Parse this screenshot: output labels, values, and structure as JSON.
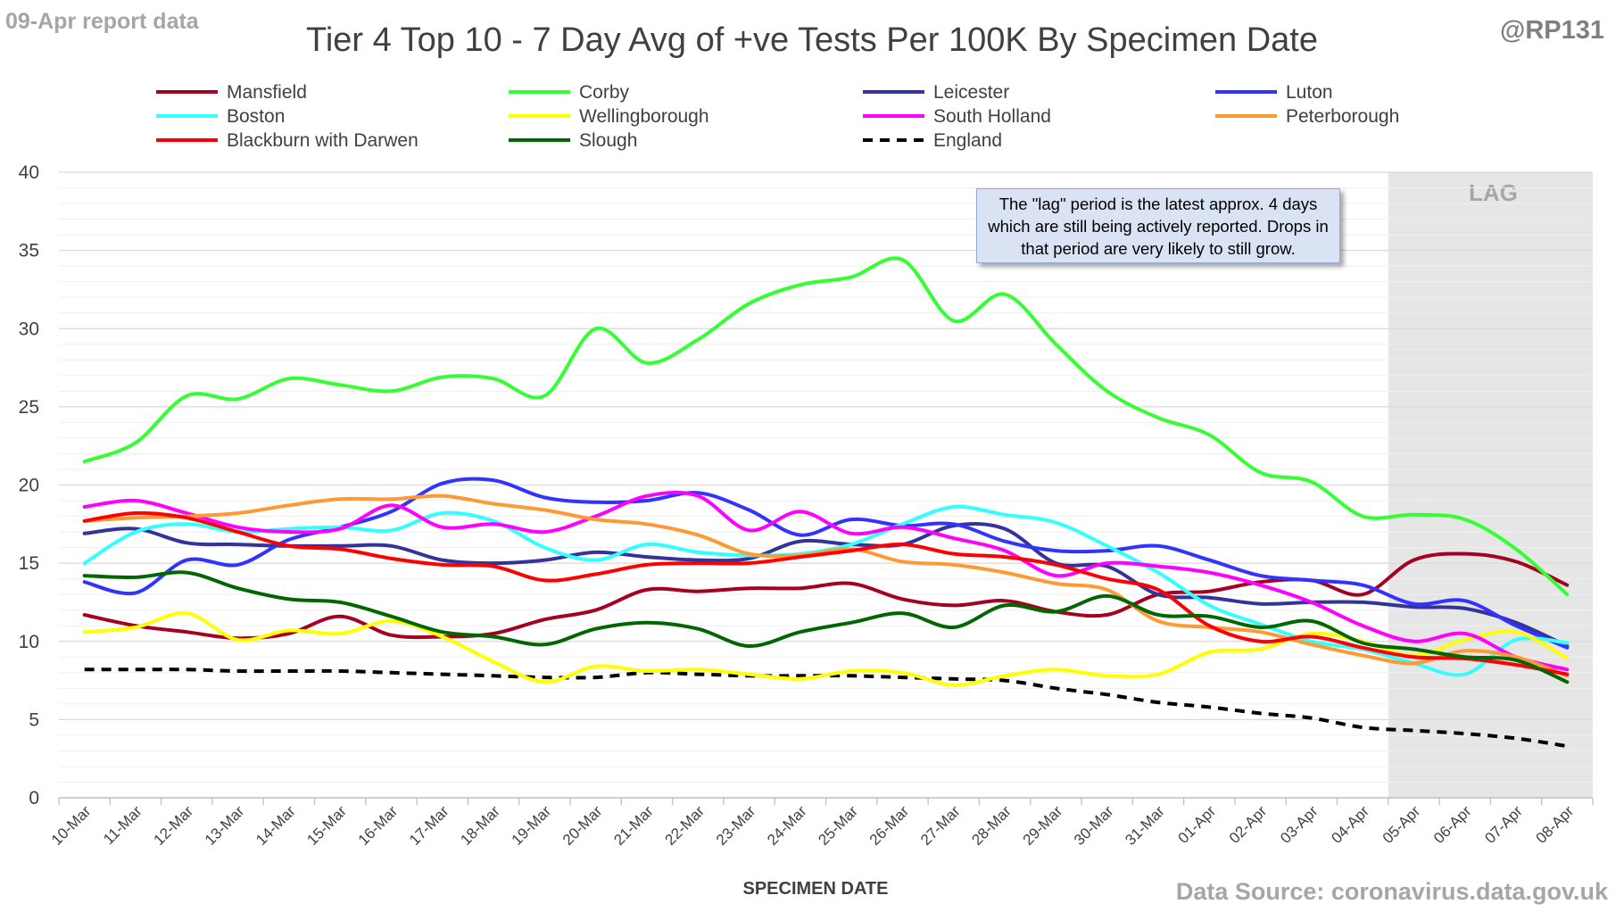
{
  "report_label": "09-Apr report data",
  "handle": "@RP131",
  "source": "Data Source: coronavirus.data.gov.uk",
  "annotation": "The \"lag\" period is the latest approx. 4 days which are still being actively reported.  Drops in that period are very likely to still grow.",
  "chart_data": {
    "type": "line",
    "title": "Tier 4 Top 10 - 7 Day Avg of +ve Tests Per 100K By Specimen Date",
    "xlabel": "SPECIMEN DATE",
    "ylabel": "",
    "ylim": [
      0,
      40
    ],
    "yticks": [
      0,
      5,
      10,
      15,
      20,
      25,
      30,
      35,
      40
    ],
    "grid": true,
    "legend_position": "top",
    "shaded_region": {
      "label": "LAG",
      "from": "05-Apr",
      "to": "08-Apr"
    },
    "categories": [
      "10-Mar",
      "11-Mar",
      "12-Mar",
      "13-Mar",
      "14-Mar",
      "15-Mar",
      "16-Mar",
      "17-Mar",
      "18-Mar",
      "19-Mar",
      "20-Mar",
      "21-Mar",
      "22-Mar",
      "23-Mar",
      "24-Mar",
      "25-Mar",
      "26-Mar",
      "27-Mar",
      "28-Mar",
      "29-Mar",
      "30-Mar",
      "31-Mar",
      "01-Apr",
      "02-Apr",
      "03-Apr",
      "04-Apr",
      "05-Apr",
      "06-Apr",
      "07-Apr",
      "08-Apr"
    ],
    "series": [
      {
        "name": "Mansfield",
        "color": "#a50021",
        "dash": false,
        "values": [
          11.7,
          11.0,
          10.6,
          10.2,
          10.5,
          11.6,
          10.4,
          10.3,
          10.5,
          11.4,
          12.0,
          13.3,
          13.2,
          13.4,
          13.4,
          13.7,
          12.7,
          12.3,
          12.6,
          11.9,
          11.7,
          13.0,
          13.2,
          13.8,
          13.9,
          13.0,
          15.2,
          15.6,
          15.1,
          13.6
        ]
      },
      {
        "name": "Corby",
        "color": "#33ff33",
        "dash": false,
        "values": [
          21.5,
          22.7,
          25.7,
          25.5,
          26.8,
          26.4,
          26.0,
          26.9,
          26.8,
          25.7,
          30.0,
          27.8,
          29.3,
          31.6,
          32.8,
          33.3,
          34.4,
          30.5,
          32.2,
          29.0,
          26.0,
          24.3,
          23.2,
          20.8,
          20.2,
          18.0,
          18.1,
          17.8,
          15.9,
          13.0
        ]
      },
      {
        "name": "Leicester",
        "color": "#333399",
        "dash": false,
        "values": [
          16.9,
          17.2,
          16.3,
          16.2,
          16.1,
          16.1,
          16.1,
          15.2,
          15.0,
          15.2,
          15.7,
          15.4,
          15.2,
          15.3,
          16.4,
          16.2,
          16.2,
          17.4,
          17.2,
          15.0,
          14.8,
          13.0,
          12.8,
          12.4,
          12.5,
          12.5,
          12.2,
          12.1,
          11.2,
          9.7
        ]
      },
      {
        "name": "Luton",
        "color": "#3333ff",
        "dash": false,
        "values": [
          13.8,
          13.1,
          15.2,
          14.9,
          16.5,
          17.3,
          18.3,
          20.1,
          20.3,
          19.2,
          18.9,
          19.0,
          19.5,
          18.4,
          16.8,
          17.8,
          17.4,
          17.5,
          16.4,
          15.8,
          15.8,
          16.1,
          15.2,
          14.2,
          13.9,
          13.6,
          12.4,
          12.6,
          11.0,
          9.6
        ]
      },
      {
        "name": "Boston",
        "color": "#33ffff",
        "dash": false,
        "values": [
          15.0,
          17.0,
          17.5,
          17.0,
          17.2,
          17.3,
          17.1,
          18.2,
          17.7,
          16.0,
          15.2,
          16.2,
          15.7,
          15.5,
          15.6,
          16.2,
          17.5,
          18.6,
          18.1,
          17.6,
          16.1,
          14.4,
          12.3,
          11.1,
          10.0,
          9.5,
          8.6,
          7.9,
          10.1,
          9.9
        ]
      },
      {
        "name": "Wellingborough",
        "color": "#ffff00",
        "dash": false,
        "values": [
          10.6,
          10.9,
          11.8,
          10.1,
          10.7,
          10.5,
          11.3,
          10.3,
          8.7,
          7.4,
          8.4,
          8.1,
          8.2,
          7.9,
          7.6,
          8.1,
          8.0,
          7.2,
          7.8,
          8.2,
          7.8,
          7.9,
          9.3,
          9.5,
          10.5,
          10.0,
          9.1,
          10.1,
          10.6,
          8.9
        ]
      },
      {
        "name": "South Holland",
        "color": "#ff00ff",
        "dash": false,
        "values": [
          18.6,
          19.0,
          18.2,
          17.3,
          17.0,
          17.2,
          18.7,
          17.3,
          17.5,
          17.0,
          18.0,
          19.3,
          19.3,
          17.1,
          18.3,
          16.9,
          17.3,
          16.6,
          15.8,
          14.2,
          15.0,
          14.8,
          14.4,
          13.6,
          12.5,
          11.0,
          10.0,
          10.5,
          9.0,
          8.2
        ]
      },
      {
        "name": "Peterborough",
        "color": "#ff9933",
        "dash": false,
        "values": [
          17.7,
          17.9,
          18.0,
          18.2,
          18.7,
          19.1,
          19.1,
          19.3,
          18.8,
          18.4,
          17.8,
          17.5,
          16.8,
          15.6,
          15.5,
          15.9,
          15.1,
          14.9,
          14.4,
          13.7,
          13.3,
          11.3,
          10.9,
          10.6,
          9.8,
          9.1,
          8.6,
          9.4,
          9.0,
          7.8
        ]
      },
      {
        "name": "Blackburn with Darwen",
        "color": "#ff0000",
        "dash": false,
        "values": [
          17.7,
          18.2,
          17.9,
          17.0,
          16.1,
          15.9,
          15.3,
          14.9,
          14.8,
          13.9,
          14.3,
          14.9,
          15.0,
          15.0,
          15.4,
          15.8,
          16.2,
          15.6,
          15.4,
          14.9,
          14.0,
          13.3,
          11.0,
          10.0,
          10.3,
          9.6,
          9.0,
          8.9,
          8.5,
          7.9
        ]
      },
      {
        "name": "Slough",
        "color": "#006600",
        "dash": false,
        "values": [
          14.2,
          14.1,
          14.4,
          13.4,
          12.7,
          12.5,
          11.6,
          10.6,
          10.3,
          9.8,
          10.8,
          11.2,
          10.8,
          9.7,
          10.6,
          11.2,
          11.8,
          10.9,
          12.3,
          11.9,
          12.9,
          11.7,
          11.6,
          10.9,
          11.3,
          9.9,
          9.5,
          9.0,
          8.8,
          7.4
        ]
      },
      {
        "name": "England",
        "color": "#000000",
        "dash": true,
        "values": [
          8.2,
          8.2,
          8.2,
          8.1,
          8.1,
          8.1,
          8.0,
          7.9,
          7.8,
          7.7,
          7.7,
          8.0,
          7.9,
          7.8,
          7.8,
          7.8,
          7.7,
          7.6,
          7.5,
          7.0,
          6.6,
          6.1,
          5.8,
          5.4,
          5.1,
          4.5,
          4.3,
          4.1,
          3.8,
          3.3
        ]
      }
    ]
  }
}
